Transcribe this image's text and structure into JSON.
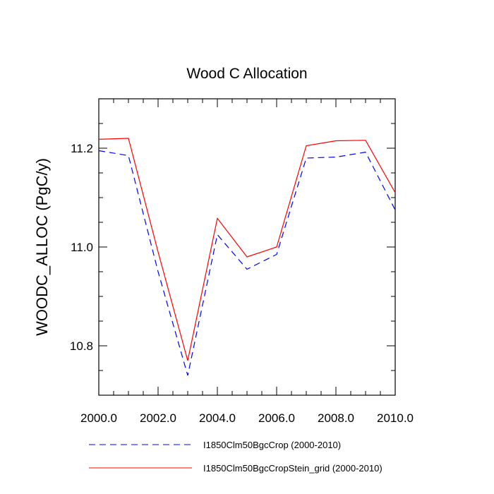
{
  "chart_data": {
    "type": "line",
    "title": "Wood C Allocation",
    "xlabel": "",
    "ylabel": "WOODC_ALLOC  (PgC/y)",
    "xlim": [
      2000,
      2010
    ],
    "ylim": [
      10.7,
      11.3
    ],
    "x_ticks": [
      2000,
      2002,
      2004,
      2006,
      2008,
      2010
    ],
    "x_tick_labels": [
      "2000.0",
      "2002.0",
      "2004.0",
      "2006.0",
      "2008.0",
      "2010.0"
    ],
    "y_ticks": [
      10.8,
      11.0,
      11.2
    ],
    "y_tick_labels": [
      "10.8",
      "11.0",
      "11.2"
    ],
    "grid": false,
    "legend_position": "bottom",
    "x": [
      2000,
      2001,
      2002,
      2003,
      2004,
      2005,
      2006,
      2007,
      2008,
      2009,
      2010
    ],
    "series": [
      {
        "name": "I1850Clm50BgcCrop (2000-2010)",
        "color": "#0000ff",
        "dash": "dashed",
        "values": [
          11.195,
          11.185,
          10.95,
          10.74,
          11.025,
          10.955,
          10.985,
          11.18,
          11.182,
          11.192,
          11.075
        ]
      },
      {
        "name": "I1850Clm50BgcCropStein_grid (2000-2010)",
        "color": "#ff0000",
        "dash": "solid",
        "values": [
          11.218,
          11.22,
          10.99,
          10.77,
          11.058,
          10.98,
          11.0,
          11.205,
          11.215,
          11.216,
          11.11
        ]
      }
    ]
  }
}
